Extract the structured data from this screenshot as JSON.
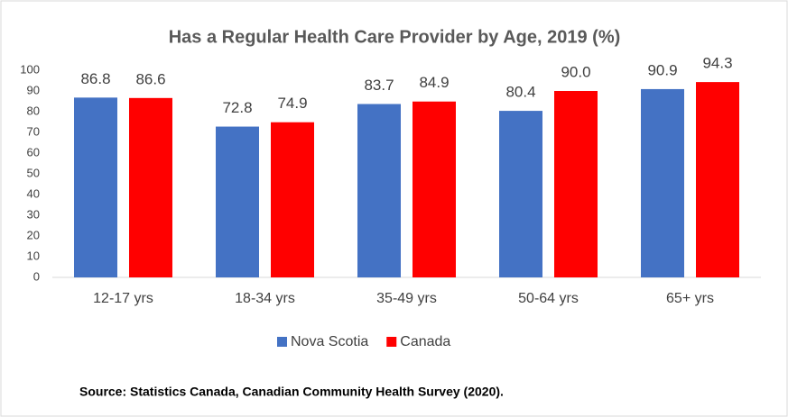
{
  "chart_data": {
    "type": "bar",
    "title": "Has a Regular Health Care Provider by Age, 2019 (%)",
    "categories": [
      "12-17 yrs",
      "18-34 yrs",
      "35-49 yrs",
      "50-64 yrs",
      "65+ yrs"
    ],
    "series": [
      {
        "name": "Nova Scotia",
        "color": "#4472c4",
        "values": [
          86.8,
          72.8,
          83.7,
          80.4,
          90.9
        ],
        "value_labels": [
          "86.8",
          "72.8",
          "83.7",
          "80.4",
          "90.9"
        ]
      },
      {
        "name": "Canada",
        "color": "#ff0000",
        "values": [
          86.6,
          74.9,
          84.9,
          90.0,
          94.3
        ],
        "value_labels": [
          "86.6",
          "74.9",
          "84.9",
          "90.0",
          "94.3"
        ]
      }
    ],
    "ylim": [
      0,
      100
    ],
    "yticks": [
      0,
      10,
      20,
      30,
      40,
      50,
      60,
      70,
      80,
      90,
      100
    ],
    "grid": false,
    "legend": "bottom",
    "source": "Source: Statistics Canada, Canadian Community Health Survey (2020)."
  }
}
